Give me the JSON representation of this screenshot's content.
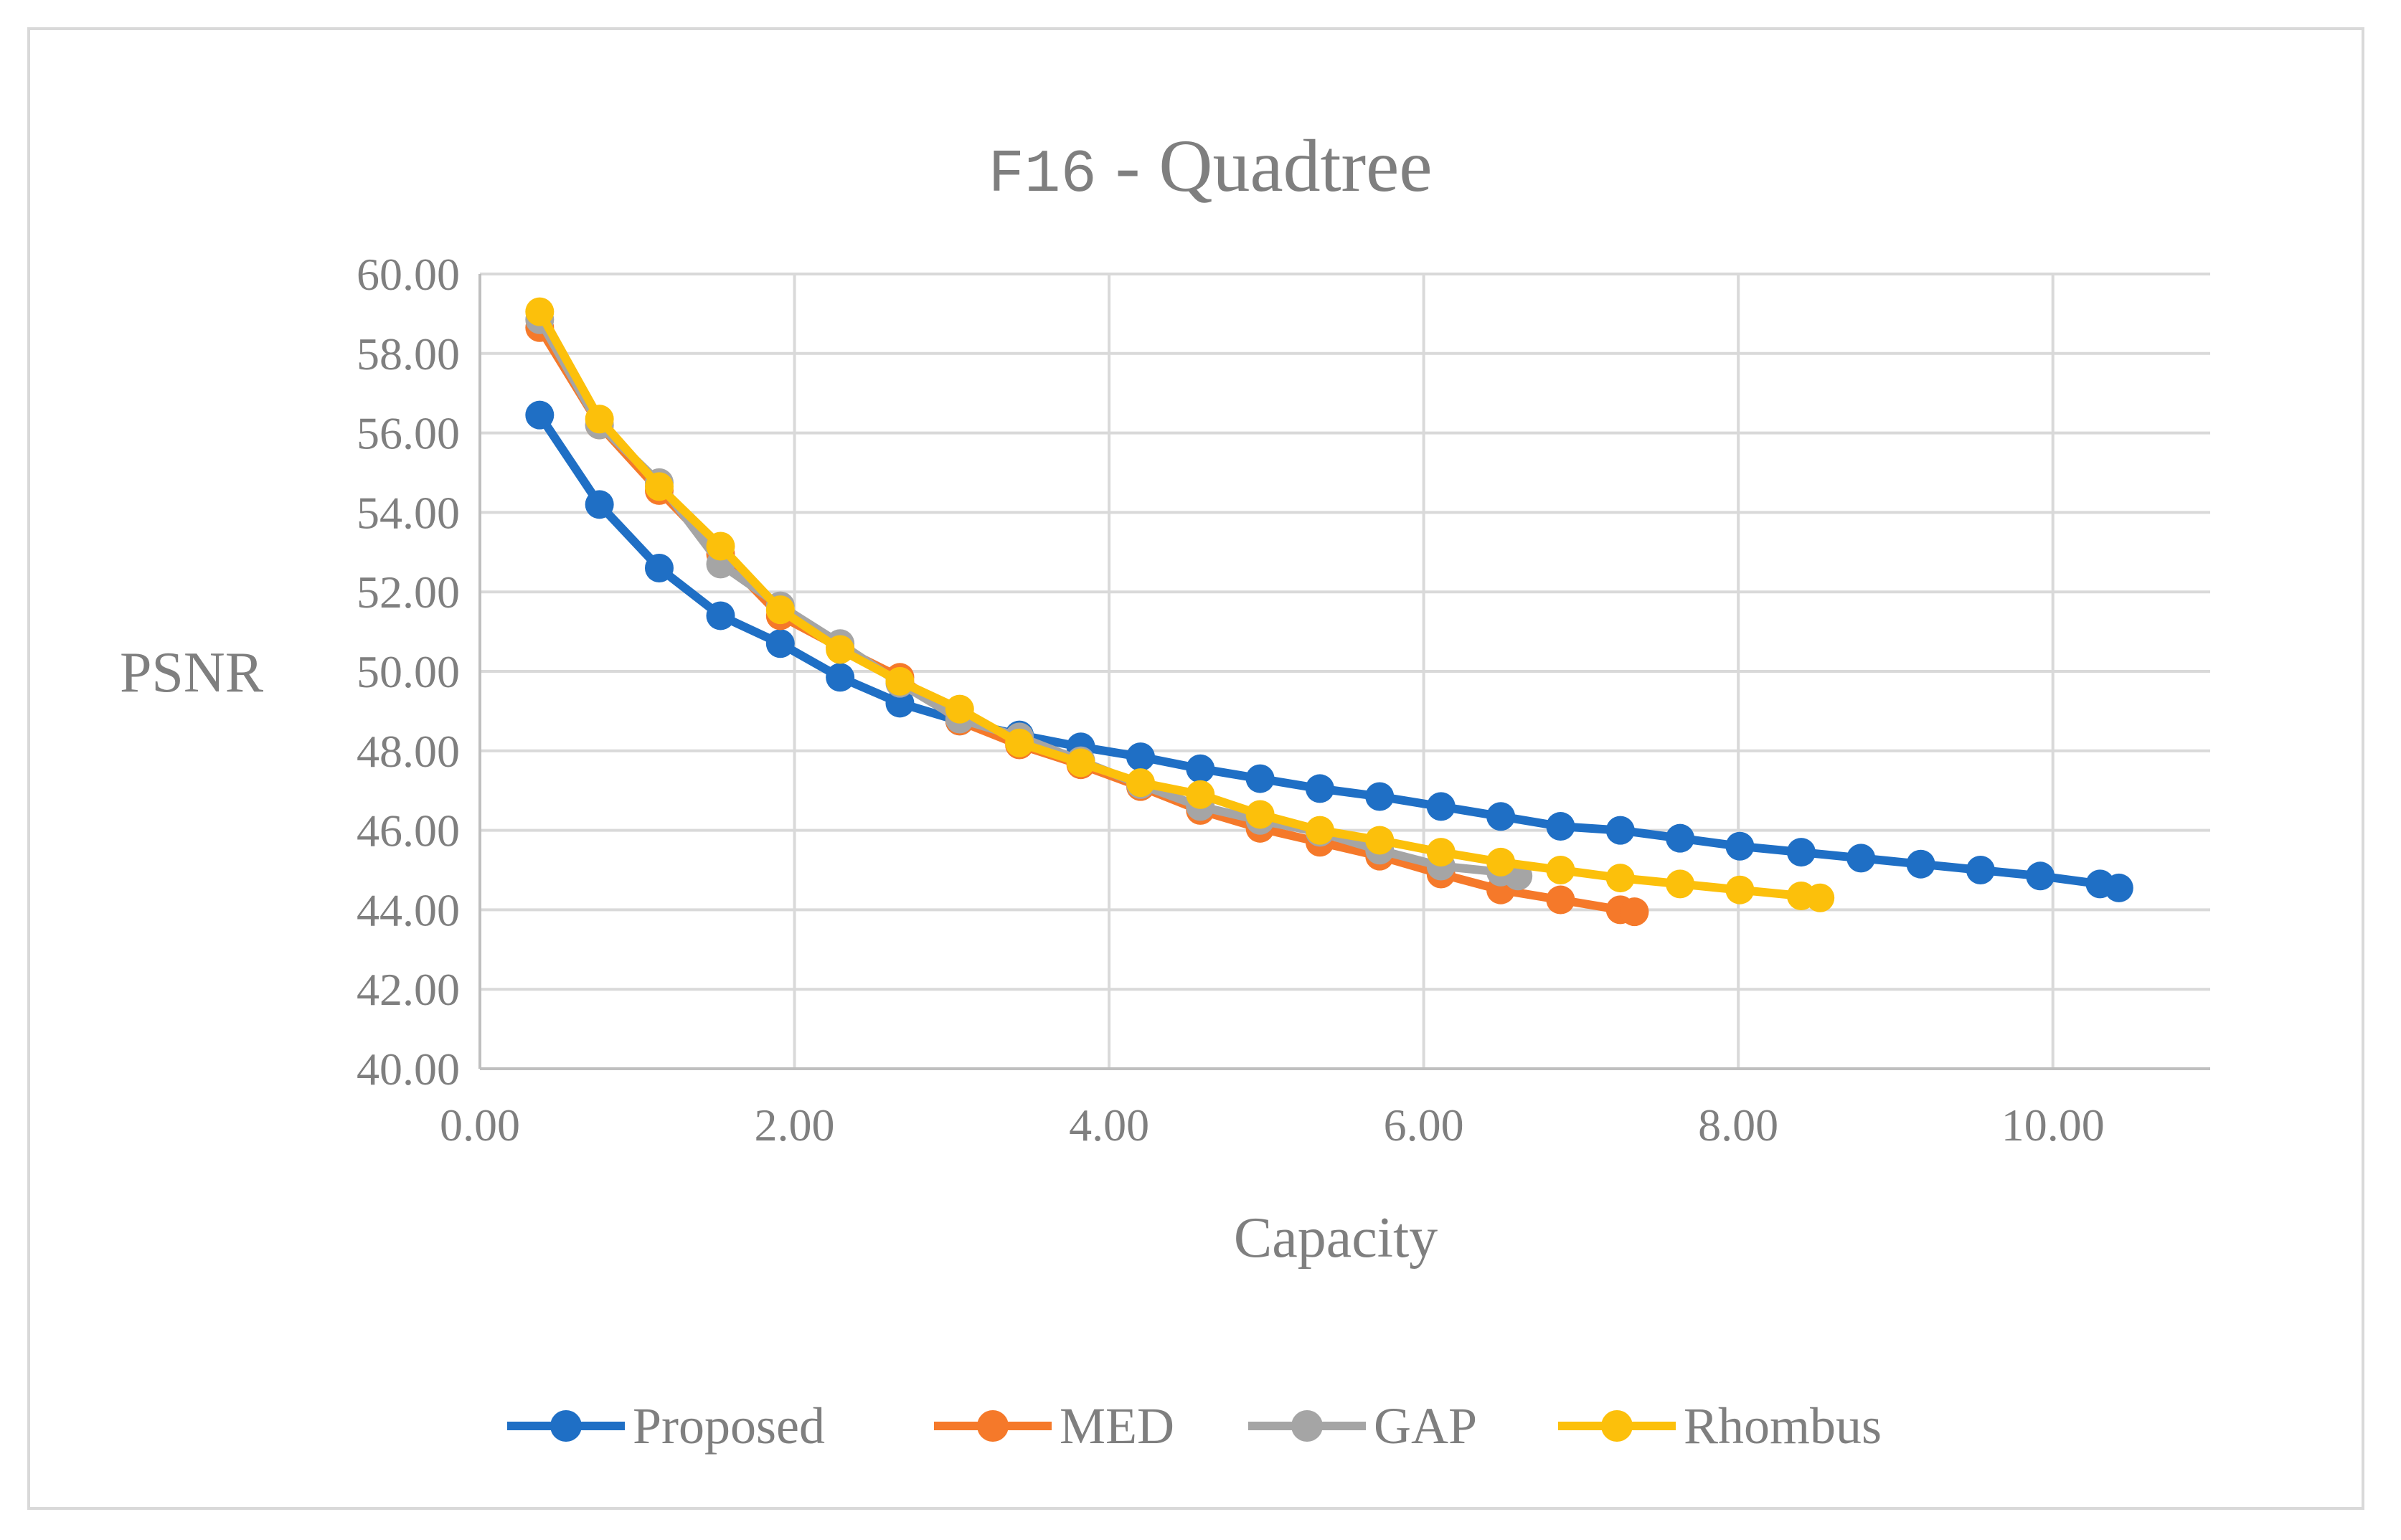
{
  "chart_data": {
    "type": "line",
    "title": "F16 - Quadtree",
    "title_parts": {
      "code": "F16",
      "rest": " - Quadtree"
    },
    "xlabel": "Capacity",
    "ylabel": "PSNR",
    "xlim": [
      0,
      11
    ],
    "ylim": [
      40,
      60
    ],
    "x_ticks": [
      0,
      2,
      4,
      6,
      8,
      10
    ],
    "x_tick_labels": [
      "0.00",
      "2.00",
      "4.00",
      "6.00",
      "8.00",
      "10.00"
    ],
    "y_ticks": [
      40,
      42,
      44,
      46,
      48,
      50,
      52,
      54,
      56,
      58,
      60
    ],
    "y_tick_labels": [
      "40.00",
      "42.00",
      "44.00",
      "46.00",
      "48.00",
      "50.00",
      "52.00",
      "54.00",
      "56.00",
      "58.00",
      "60.00"
    ],
    "grid": "vertical and horizontal major gridlines",
    "legend_position": "bottom",
    "series": [
      {
        "name": "Proposed",
        "color": "#1f6fc5",
        "x": [
          0.38,
          0.76,
          1.14,
          1.53,
          1.91,
          2.29,
          2.67,
          3.05,
          3.43,
          3.82,
          4.2,
          4.58,
          4.96,
          5.34,
          5.72,
          6.11,
          6.49,
          6.87,
          7.25,
          7.63,
          8.01,
          8.4,
          8.78,
          9.16,
          9.54,
          9.92,
          10.3,
          10.42
        ],
        "y": [
          56.45,
          54.2,
          52.6,
          51.4,
          50.7,
          49.85,
          49.2,
          48.75,
          48.4,
          48.1,
          47.85,
          47.55,
          47.3,
          47.05,
          46.85,
          46.6,
          46.35,
          46.1,
          46.0,
          45.8,
          45.6,
          45.45,
          45.3,
          45.15,
          45.0,
          44.85,
          44.65,
          44.55
        ]
      },
      {
        "name": "MED",
        "color": "#f5792a",
        "x": [
          0.38,
          0.76,
          1.14,
          1.53,
          1.91,
          2.29,
          2.67,
          3.05,
          3.43,
          3.82,
          4.2,
          4.58,
          4.96,
          5.34,
          5.72,
          6.11,
          6.49,
          6.87,
          7.25,
          7.34
        ],
        "y": [
          58.65,
          56.2,
          54.55,
          52.95,
          51.4,
          50.6,
          49.85,
          48.75,
          48.15,
          47.65,
          47.1,
          46.5,
          46.05,
          45.7,
          45.35,
          44.9,
          44.5,
          44.25,
          44.0,
          43.95
        ]
      },
      {
        "name": "GAP",
        "color": "#a5a5a5",
        "x": [
          0.38,
          0.76,
          1.14,
          1.53,
          1.91,
          2.29,
          2.67,
          3.05,
          3.43,
          3.82,
          4.2,
          4.58,
          4.96,
          5.34,
          5.72,
          6.11,
          6.49,
          6.6
        ],
        "y": [
          58.85,
          56.2,
          54.75,
          52.7,
          51.65,
          50.7,
          49.7,
          48.8,
          48.35,
          47.75,
          47.15,
          46.6,
          46.25,
          45.95,
          45.5,
          45.1,
          44.95,
          44.85
        ]
      },
      {
        "name": "Rhombus",
        "color": "#fcc00b",
        "x": [
          0.38,
          0.76,
          1.14,
          1.53,
          1.91,
          2.29,
          2.67,
          3.05,
          3.43,
          3.82,
          4.2,
          4.58,
          4.96,
          5.34,
          5.72,
          6.11,
          6.49,
          6.87,
          7.25,
          7.63,
          8.01,
          8.4,
          8.52
        ],
        "y": [
          59.05,
          56.35,
          54.65,
          53.15,
          51.55,
          50.55,
          49.75,
          49.05,
          48.2,
          47.7,
          47.2,
          46.9,
          46.4,
          46.0,
          45.75,
          45.45,
          45.2,
          45.0,
          44.8,
          44.65,
          44.5,
          44.35,
          44.3
        ]
      }
    ]
  }
}
